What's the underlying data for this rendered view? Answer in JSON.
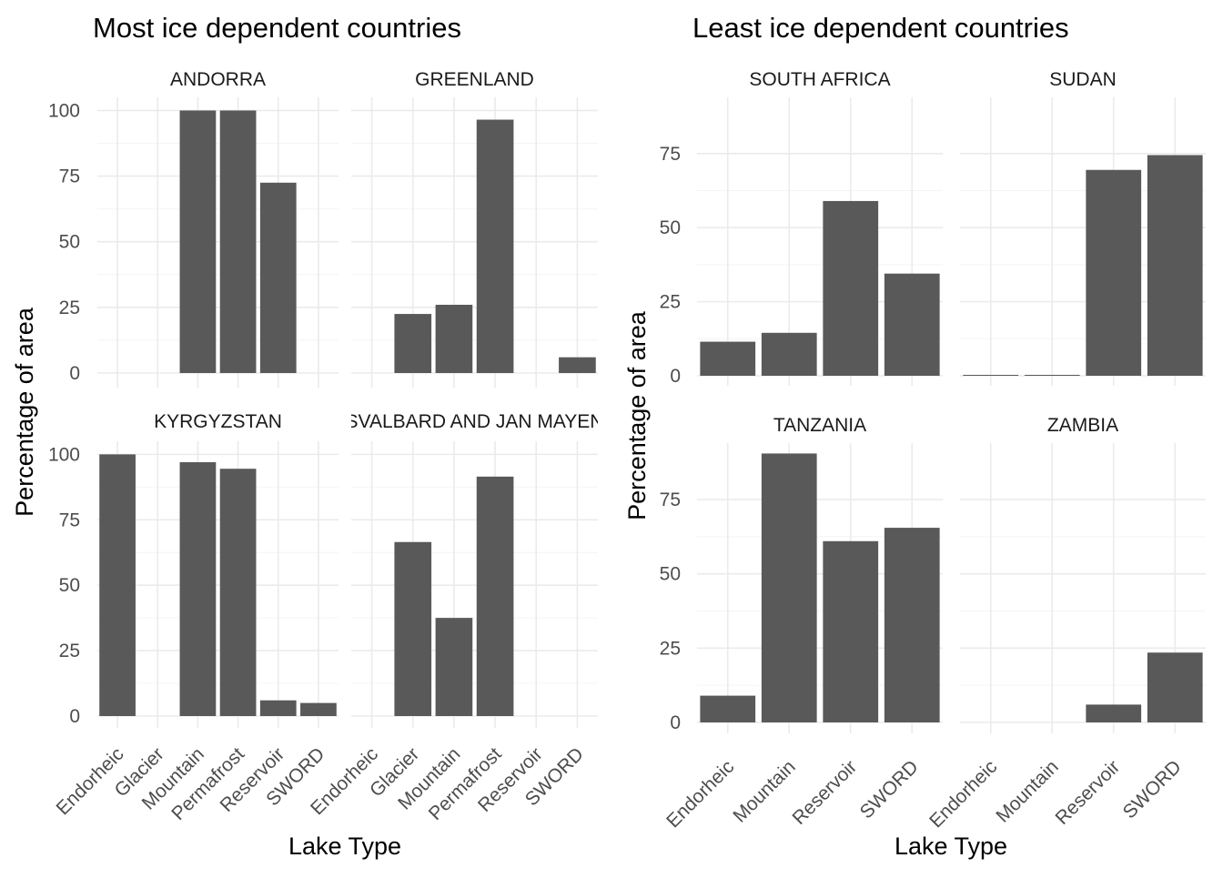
{
  "chart_data": [
    {
      "type": "bar",
      "title": "Most ice dependent countries",
      "xlabel": "Lake Type",
      "ylabel": "Percentage of area",
      "ylim": [
        0,
        105
      ],
      "yticks": [
        0,
        25,
        50,
        75,
        100
      ],
      "grid": true,
      "categories": [
        "Endorheic",
        "Glacier",
        "Mountain",
        "Permafrost",
        "Reservoir",
        "SWORD"
      ],
      "facets": [
        {
          "name": "ANDORRA",
          "values": [
            0,
            0,
            100,
            100,
            72.5,
            0
          ]
        },
        {
          "name": "GREENLAND",
          "values": [
            0,
            22.5,
            26,
            96.5,
            0,
            6
          ]
        },
        {
          "name": "KYRGYZSTAN",
          "values": [
            100,
            0,
            97,
            94.5,
            6,
            5
          ]
        },
        {
          "name": "SVALBARD AND JAN MAYEN",
          "values": [
            0,
            66.5,
            37.5,
            91.5,
            0,
            0
          ]
        }
      ]
    },
    {
      "type": "bar",
      "title": "Least ice dependent countries",
      "xlabel": "Lake Type",
      "ylabel": "Percentage of area",
      "ylim": [
        0,
        94
      ],
      "yticks": [
        0,
        25,
        50,
        75
      ],
      "grid": true,
      "categories": [
        "Endorheic",
        "Mountain",
        "Reservoir",
        "SWORD"
      ],
      "facets": [
        {
          "name": "SOUTH AFRICA",
          "values": [
            11.5,
            14.5,
            59,
            34.5
          ]
        },
        {
          "name": "SUDAN",
          "values": [
            0.3,
            0.3,
            69.5,
            74.5
          ]
        },
        {
          "name": "TANZANIA",
          "values": [
            9,
            90.5,
            61,
            65.5
          ]
        },
        {
          "name": "ZAMBIA",
          "values": [
            0,
            0,
            6,
            23.5
          ]
        }
      ]
    }
  ]
}
